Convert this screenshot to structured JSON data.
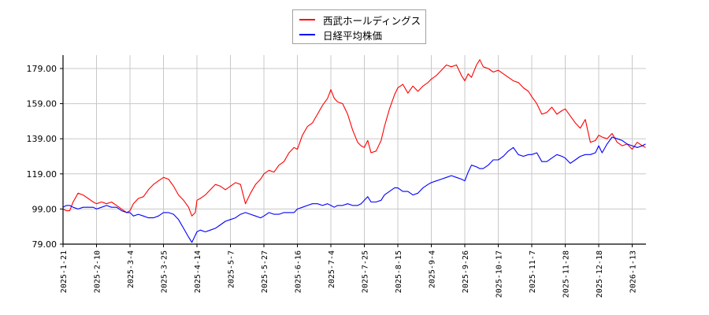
{
  "chart_data": {
    "type": "line",
    "title": "",
    "xlabel": "",
    "ylabel": "",
    "ylim": [
      79,
      186
    ],
    "grid": true,
    "legend_position": "top-center",
    "y_ticks": [
      "79.00",
      "99.00",
      "119.00",
      "139.00",
      "159.00",
      "179.00"
    ],
    "x_ticks": [
      "2025-1-21",
      "2025-2-10",
      "2025-3-4",
      "2025-3-25",
      "2025-4-14",
      "2025-5-7",
      "2025-5-27",
      "2025-6-16",
      "2025-7-4",
      "2025-7-25",
      "2025-8-15",
      "2025-9-4",
      "2025-9-26",
      "2025-10-17",
      "2025-11-7",
      "2025-11-28",
      "2025-12-18",
      "2026-1-13"
    ],
    "series": [
      {
        "name": "西武ホールディングス",
        "color": "#ff0000",
        "points_x_tick_index": [
          0,
          0.1,
          0.2,
          0.3,
          0.45,
          0.6,
          0.75,
          0.9,
          1.0,
          1.15,
          1.3,
          1.45,
          1.6,
          1.75,
          1.9,
          2.0,
          2.1,
          2.25,
          2.4,
          2.55,
          2.7,
          2.85,
          3.0,
          3.15,
          3.3,
          3.45,
          3.6,
          3.75,
          3.85,
          3.95,
          4.0,
          4.1,
          4.25,
          4.4,
          4.55,
          4.7,
          4.85,
          5.0,
          5.15,
          5.3,
          5.45,
          5.6,
          5.75,
          5.9,
          6.0,
          6.15,
          6.3,
          6.45,
          6.6,
          6.75,
          6.9,
          7.0,
          7.15,
          7.3,
          7.45,
          7.6,
          7.75,
          7.9,
          8.0,
          8.1,
          8.2,
          8.35,
          8.5,
          8.65,
          8.8,
          8.9,
          9.0,
          9.1,
          9.2,
          9.35,
          9.5,
          9.6,
          9.75,
          9.9,
          10.0,
          10.15,
          10.3,
          10.45,
          10.6,
          10.75,
          10.9,
          11.0,
          11.15,
          11.3,
          11.45,
          11.6,
          11.75,
          11.9,
          12.0,
          12.1,
          12.2,
          12.35,
          12.45,
          12.55,
          12.7,
          12.85,
          13.0,
          13.15,
          13.3,
          13.45,
          13.6,
          13.75,
          13.9,
          14.0,
          14.15,
          14.3,
          14.45,
          14.6,
          14.75,
          14.9,
          15.0,
          15.15,
          15.3,
          15.45,
          15.6,
          15.75,
          15.9,
          16.0,
          16.1,
          16.25,
          16.4,
          16.55,
          16.7,
          16.85,
          17.0,
          17.15,
          17.3,
          17.4
        ],
        "values": [
          99,
          98,
          98,
          103,
          108,
          107,
          105,
          103,
          102,
          103,
          102,
          103,
          101,
          99,
          97,
          98,
          102,
          105,
          106,
          110,
          113,
          115,
          117,
          116,
          112,
          107,
          104,
          100,
          95,
          97,
          104,
          105,
          107,
          110,
          113,
          112,
          110,
          112,
          114,
          113,
          102,
          108,
          113,
          116,
          119,
          121,
          120,
          124,
          126,
          131,
          134,
          133,
          141,
          146,
          148,
          153,
          158,
          162,
          167,
          162,
          160,
          159,
          153,
          144,
          137,
          135,
          134,
          138,
          131,
          132,
          138,
          146,
          156,
          164,
          168,
          170,
          165,
          169,
          166,
          169,
          171,
          173,
          175,
          178,
          181,
          180,
          181,
          175,
          172,
          176,
          174,
          181,
          184,
          180,
          179,
          177,
          178,
          176,
          174,
          172,
          171,
          168,
          166,
          163,
          159,
          153,
          154,
          157,
          153,
          155,
          156,
          152,
          148,
          145,
          150,
          137,
          138,
          141,
          140,
          139,
          142,
          137,
          135,
          136,
          133,
          137,
          135,
          134
        ]
      },
      {
        "name": "日経平均株価",
        "color": "#0000ff",
        "points_x_tick_index": [
          0,
          0.1,
          0.2,
          0.3,
          0.45,
          0.6,
          0.75,
          0.9,
          1.0,
          1.15,
          1.3,
          1.45,
          1.6,
          1.75,
          1.9,
          2.0,
          2.1,
          2.25,
          2.4,
          2.55,
          2.7,
          2.85,
          3.0,
          3.15,
          3.3,
          3.45,
          3.6,
          3.75,
          3.85,
          3.95,
          4.0,
          4.1,
          4.25,
          4.4,
          4.55,
          4.7,
          4.85,
          5.0,
          5.15,
          5.3,
          5.45,
          5.6,
          5.75,
          5.9,
          6.0,
          6.15,
          6.3,
          6.45,
          6.6,
          6.75,
          6.9,
          7.0,
          7.15,
          7.3,
          7.45,
          7.6,
          7.75,
          7.9,
          8.0,
          8.1,
          8.2,
          8.35,
          8.5,
          8.65,
          8.8,
          8.9,
          9.0,
          9.1,
          9.2,
          9.35,
          9.5,
          9.6,
          9.75,
          9.9,
          10.0,
          10.15,
          10.3,
          10.45,
          10.6,
          10.75,
          10.9,
          11.0,
          11.15,
          11.3,
          11.45,
          11.6,
          11.75,
          11.9,
          12.0,
          12.1,
          12.2,
          12.35,
          12.45,
          12.55,
          12.7,
          12.85,
          13.0,
          13.15,
          13.3,
          13.45,
          13.6,
          13.75,
          13.9,
          14.0,
          14.15,
          14.3,
          14.45,
          14.6,
          14.75,
          14.9,
          15.0,
          15.15,
          15.3,
          15.45,
          15.6,
          15.75,
          15.9,
          16.0,
          16.1,
          16.25,
          16.4,
          16.55,
          16.7,
          16.85,
          17.0,
          17.15,
          17.3,
          17.4
        ],
        "values": [
          100,
          101,
          101,
          100,
          99,
          100,
          100,
          100,
          99,
          100,
          101,
          100,
          100,
          98,
          97,
          97,
          95,
          96,
          95,
          94,
          94,
          95,
          97,
          97,
          96,
          93,
          88,
          83,
          80,
          84,
          86,
          87,
          86,
          87,
          88,
          90,
          92,
          93,
          94,
          96,
          97,
          96,
          95,
          94,
          95,
          97,
          96,
          96,
          97,
          97,
          97,
          99,
          100,
          101,
          102,
          102,
          101,
          102,
          101,
          100,
          101,
          101,
          102,
          101,
          101,
          102,
          104,
          106,
          103,
          103,
          104,
          107,
          109,
          111,
          111,
          109,
          109,
          107,
          108,
          111,
          113,
          114,
          115,
          116,
          117,
          118,
          117,
          116,
          115,
          120,
          124,
          123,
          122,
          122,
          124,
          127,
          127,
          129,
          132,
          134,
          130,
          129,
          130,
          130,
          131,
          126,
          126,
          128,
          130,
          129,
          128,
          125,
          127,
          129,
          130,
          130,
          131,
          135,
          131,
          136,
          140,
          139,
          138,
          136,
          135,
          134,
          135,
          136
        ]
      }
    ]
  },
  "legend": {
    "items": [
      {
        "label": "西武ホールディングス",
        "color": "#ff0000"
      },
      {
        "label": "日経平均株価",
        "color": "#0000ff"
      }
    ]
  }
}
